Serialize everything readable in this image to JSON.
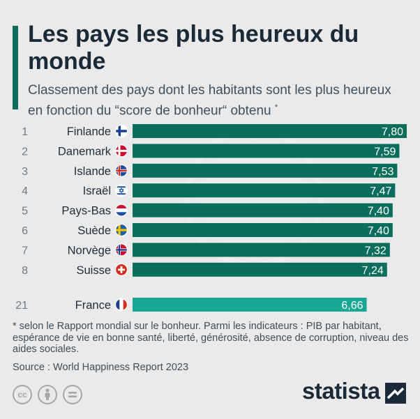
{
  "header": {
    "title": "Les pays les plus heureux du monde",
    "subtitle": "Classement des pays dont les habitants sont les plus heureux en fonction du “score de bonheur“ obtenu",
    "subtitle_mark": "*"
  },
  "chart_data": {
    "type": "bar",
    "orientation": "horizontal",
    "xlim": [
      0,
      7.8
    ],
    "value_format": "comma-decimal",
    "rows": [
      {
        "rank": "1",
        "country": "Finlande",
        "flag": "finland-flag-icon",
        "value": 7.8,
        "label": "7,80",
        "color": "#0b6e5c"
      },
      {
        "rank": "2",
        "country": "Danemark",
        "flag": "denmark-flag-icon",
        "value": 7.59,
        "label": "7,59",
        "color": "#0b6e5c"
      },
      {
        "rank": "3",
        "country": "Islande",
        "flag": "iceland-flag-icon",
        "value": 7.53,
        "label": "7,53",
        "color": "#0b6e5c"
      },
      {
        "rank": "4",
        "country": "Israël",
        "flag": "israel-flag-icon",
        "value": 7.47,
        "label": "7,47",
        "color": "#0b6e5c"
      },
      {
        "rank": "5",
        "country": "Pays-Bas",
        "flag": "netherlands-flag-icon",
        "value": 7.4,
        "label": "7,40",
        "color": "#0b6e5c"
      },
      {
        "rank": "6",
        "country": "Suède",
        "flag": "sweden-flag-icon",
        "value": 7.4,
        "label": "7,40",
        "color": "#0b6e5c"
      },
      {
        "rank": "7",
        "country": "Norvège",
        "flag": "norway-flag-icon",
        "value": 7.32,
        "label": "7,32",
        "color": "#0b6e5c"
      },
      {
        "rank": "8",
        "country": "Suisse",
        "flag": "switzerland-flag-icon",
        "value": 7.24,
        "label": "7,24",
        "color": "#0b6e5c"
      },
      {
        "rank": "21",
        "country": "France",
        "flag": "france-flag-icon",
        "value": 6.66,
        "label": "6,66",
        "color": "#1aa896"
      }
    ]
  },
  "footer": {
    "note": "* selon le Rapport mondial sur le bonheur. Parmi les indicateurs : PIB par habitant, espérance de vie en bonne santé, liberté, générosité, absence de corruption, niveau des aides sociales.",
    "source": "Source : World Happiness Report 2023",
    "cc_label": "cc",
    "brand": "statista"
  },
  "icons": [
    "creative-commons-icon",
    "attribution-icon",
    "no-derivatives-icon",
    "statista-logo-icon",
    "smiley-watermark-icon"
  ]
}
